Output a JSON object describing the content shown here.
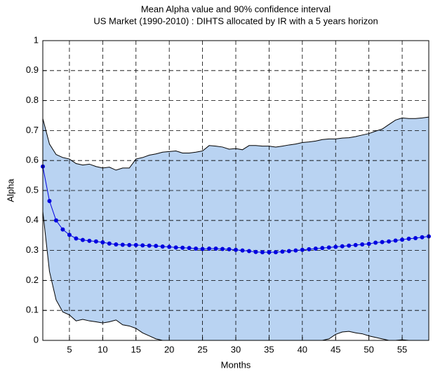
{
  "chart_data": {
    "type": "line",
    "title": "Mean Alpha value and 90% confidence interval",
    "subtitle": "US Market (1990-2010) : DIHTS  allocated by IR with a 5 years horizon",
    "x_label": "Months",
    "y_label": "Alpha",
    "x": [
      1,
      2,
      3,
      4,
      5,
      6,
      7,
      8,
      9,
      10,
      11,
      12,
      13,
      14,
      15,
      16,
      17,
      18,
      19,
      20,
      21,
      22,
      23,
      24,
      25,
      26,
      27,
      28,
      29,
      30,
      31,
      32,
      33,
      34,
      35,
      36,
      37,
      38,
      39,
      40,
      41,
      42,
      43,
      44,
      45,
      46,
      47,
      48,
      49,
      50,
      51,
      52,
      53,
      54,
      55,
      56,
      57,
      58,
      59
    ],
    "series": [
      {
        "color": "#0000e0",
        "values": [
          0.58,
          0.465,
          0.4,
          0.37,
          0.352,
          0.34,
          0.335,
          0.332,
          0.33,
          0.327,
          0.323,
          0.32,
          0.319,
          0.318,
          0.318,
          0.317,
          0.316,
          0.315,
          0.313,
          0.312,
          0.31,
          0.309,
          0.308,
          0.306,
          0.305,
          0.306,
          0.306,
          0.305,
          0.304,
          0.302,
          0.3,
          0.298,
          0.295,
          0.294,
          0.294,
          0.294,
          0.296,
          0.298,
          0.3,
          0.302,
          0.304,
          0.306,
          0.308,
          0.31,
          0.312,
          0.314,
          0.316,
          0.318,
          0.32,
          0.322,
          0.326,
          0.328,
          0.33,
          0.333,
          0.336,
          0.339,
          0.341,
          0.344,
          0.347
        ]
      }
    ],
    "band": {
      "color": "#b9d3f2",
      "upper": [
        0.74,
        0.655,
        0.62,
        0.61,
        0.605,
        0.59,
        0.585,
        0.588,
        0.58,
        0.575,
        0.578,
        0.568,
        0.575,
        0.575,
        0.605,
        0.61,
        0.618,
        0.622,
        0.628,
        0.63,
        0.632,
        0.625,
        0.625,
        0.628,
        0.632,
        0.65,
        0.648,
        0.645,
        0.638,
        0.64,
        0.636,
        0.65,
        0.65,
        0.648,
        0.648,
        0.645,
        0.648,
        0.652,
        0.655,
        0.66,
        0.662,
        0.665,
        0.67,
        0.672,
        0.672,
        0.675,
        0.676,
        0.68,
        0.685,
        0.69,
        0.698,
        0.705,
        0.72,
        0.735,
        0.742,
        0.74,
        0.74,
        0.742,
        0.745
      ],
      "lower": [
        0.43,
        0.23,
        0.135,
        0.095,
        0.085,
        0.065,
        0.07,
        0.065,
        0.062,
        0.058,
        0.062,
        0.068,
        0.052,
        0.048,
        0.04,
        0.025,
        0.015,
        0.005,
        0,
        0,
        0,
        0,
        0,
        0,
        0,
        0,
        0,
        0,
        0,
        0,
        0,
        0,
        0,
        0,
        0,
        0,
        0,
        0,
        0,
        0,
        0,
        0,
        0,
        0.005,
        0.02,
        0.028,
        0.03,
        0.025,
        0.022,
        0.015,
        0.01,
        0.005,
        0,
        0,
        0.002,
        0,
        0,
        0,
        0
      ]
    },
    "xlim": [
      1,
      59
    ],
    "xticks": [
      5,
      10,
      15,
      20,
      25,
      30,
      35,
      40,
      45,
      50,
      55
    ],
    "ylim": [
      0,
      1
    ],
    "yticks": [
      0,
      0.1,
      0.2,
      0.3,
      0.4,
      0.5,
      0.6,
      0.7,
      0.8,
      0.9,
      1
    ],
    "grid": true
  }
}
